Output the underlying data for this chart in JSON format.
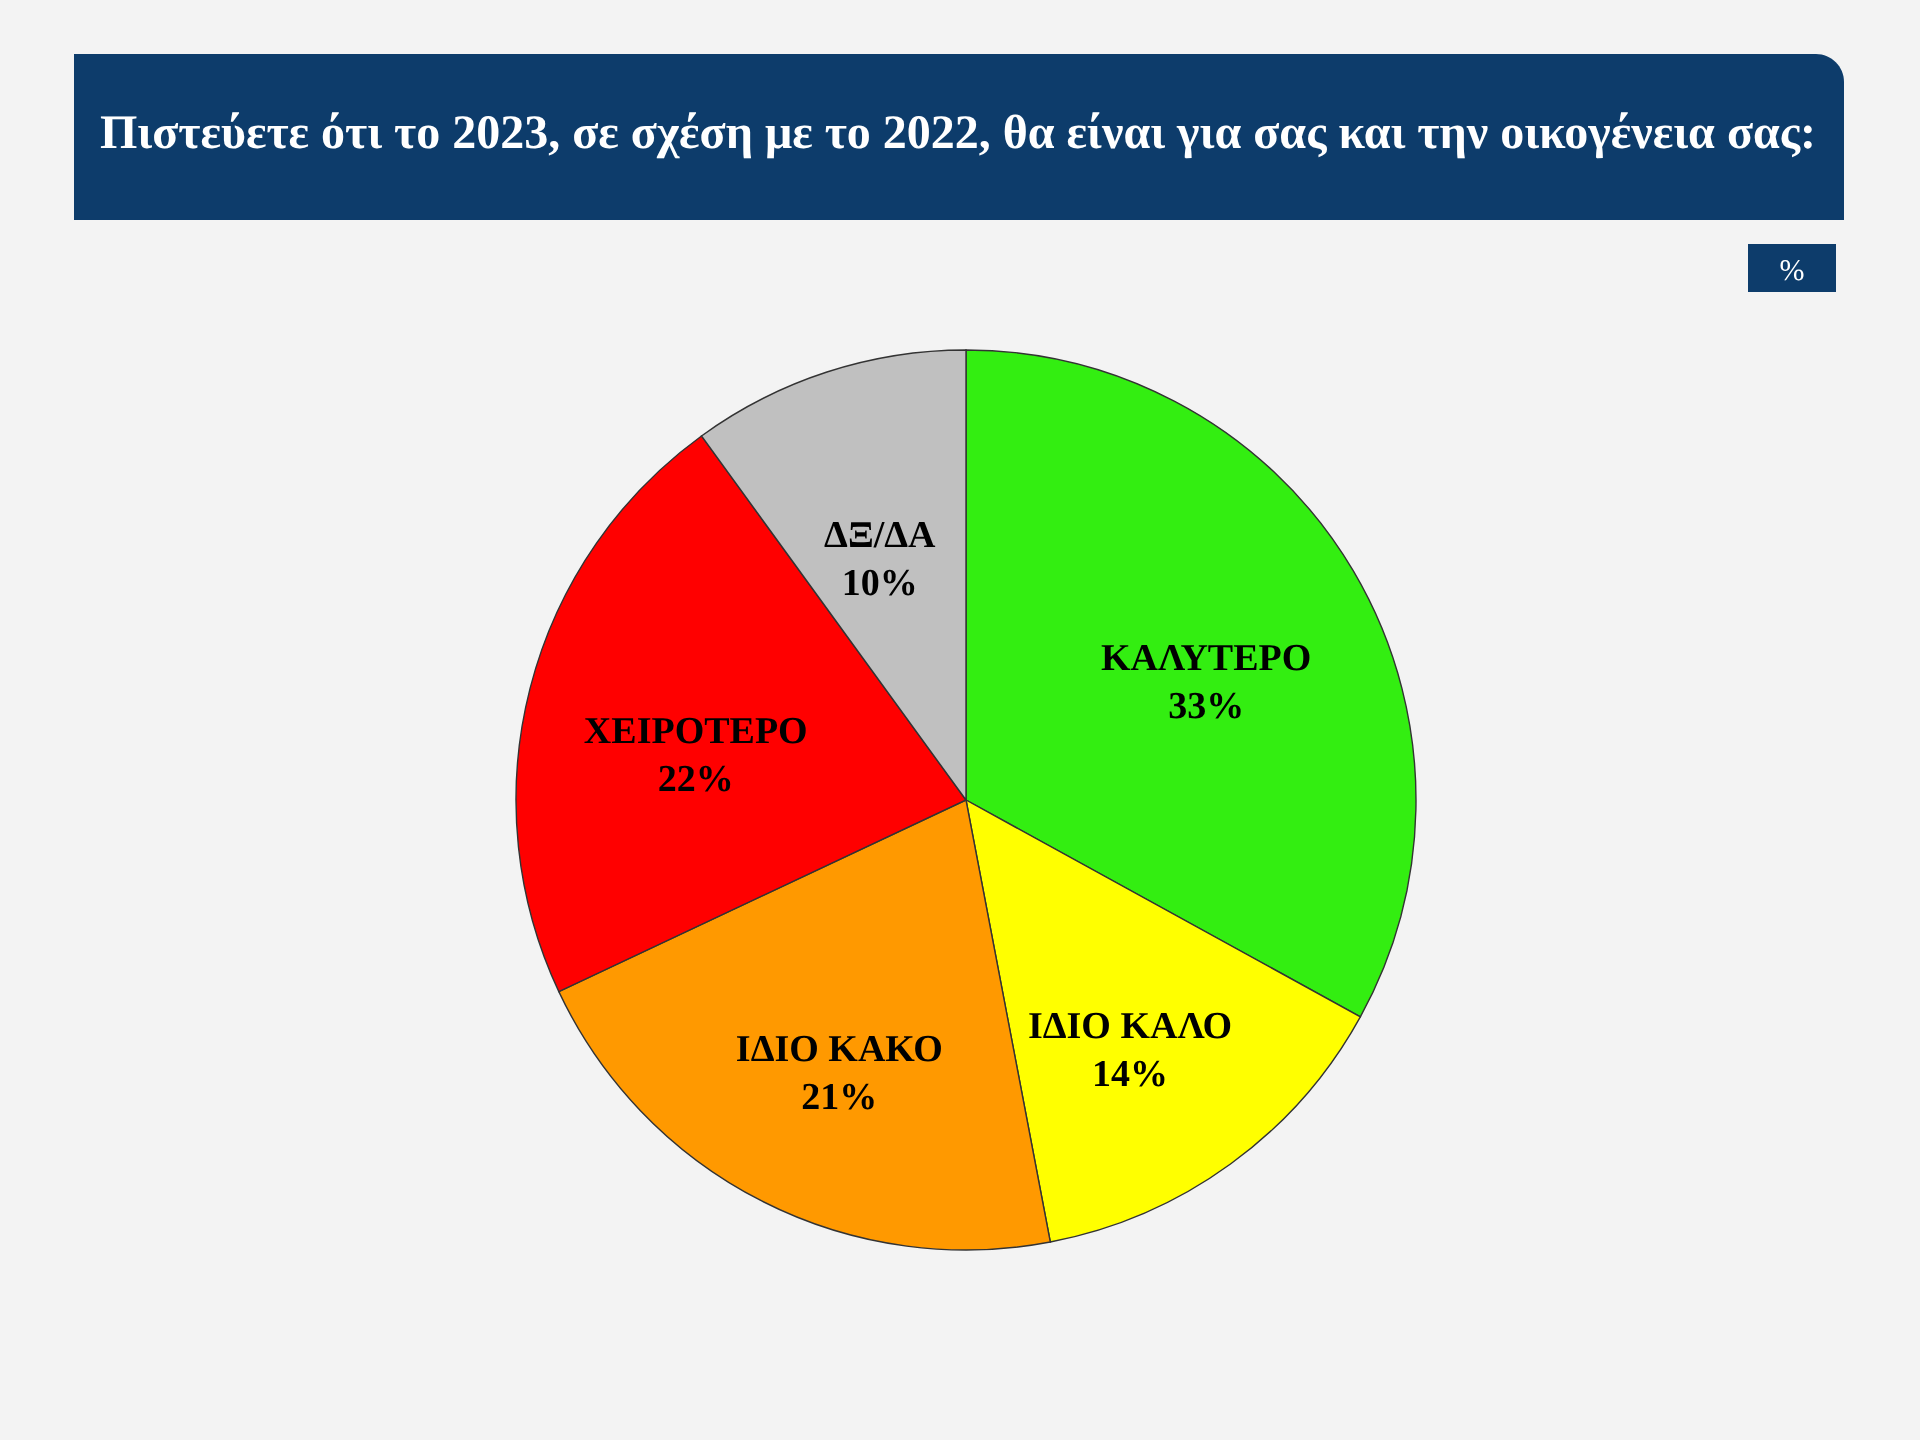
{
  "chart_data": {
    "type": "pie",
    "title": "Πιστεύετε ότι το 2023, σε σχέση με το 2022, θα είναι για σας και την οικογένεια σας:",
    "categories": [
      "ΚΑΛΥΤΕΡΟ",
      "ΙΔΙΟ ΚΑΛΟ",
      "ΙΔΙΟ ΚΑΚΟ",
      "ΧΕΙΡΟΤΕΡΟ",
      "ΔΞ/ΔΑ"
    ],
    "values": [
      33,
      14,
      21,
      22,
      10
    ],
    "value_labels": [
      "33%",
      "14%",
      "21%",
      "22%",
      "10%"
    ],
    "colors": [
      "#33ee11",
      "#ffff00",
      "#ff9900",
      "#ff0000",
      "#c0c0c0"
    ],
    "annotations": [
      "%"
    ]
  }
}
